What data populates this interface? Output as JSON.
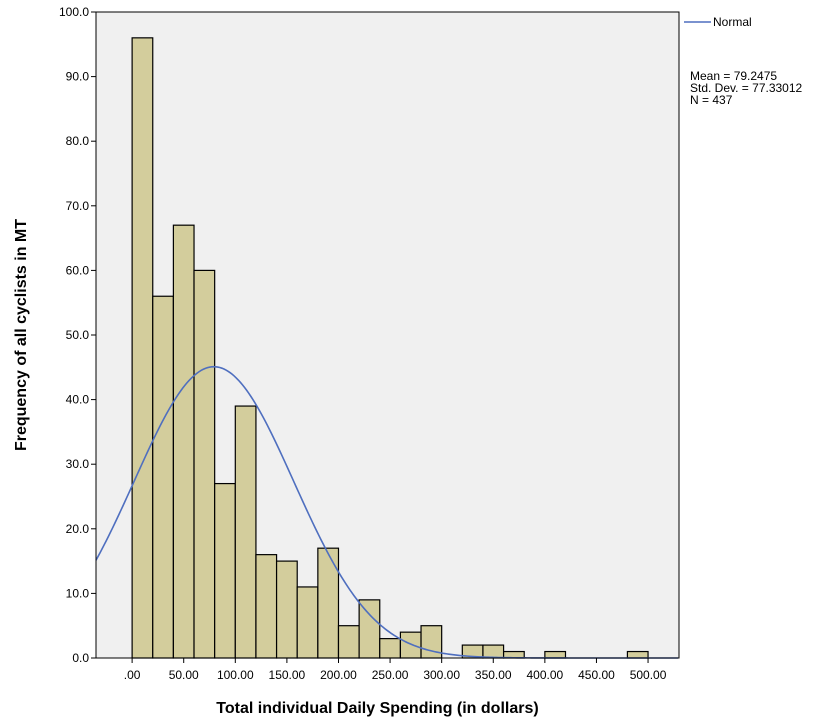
{
  "chart_data": {
    "type": "bar",
    "subtype": "histogram",
    "title": "",
    "xlabel": "Total individual Daily Spending (in dollars)",
    "ylabel": "Frequency of all cyclists in MT",
    "xlim": [
      -35,
      530
    ],
    "ylim": [
      0,
      100
    ],
    "bin_width": 20,
    "bin_start": 0,
    "x_ticks": [
      0,
      50,
      100,
      150,
      200,
      250,
      300,
      350,
      400,
      450,
      500
    ],
    "x_tick_labels": [
      ".00",
      "50.00",
      "100.00",
      "150.00",
      "200.00",
      "250.00",
      "300.00",
      "350.00",
      "400.00",
      "450.00",
      "500.00"
    ],
    "y_ticks": [
      0,
      10,
      20,
      30,
      40,
      50,
      60,
      70,
      80,
      90,
      100
    ],
    "y_tick_labels": [
      "0.0",
      "10.0",
      "20.0",
      "30.0",
      "40.0",
      "50.0",
      "60.0",
      "70.0",
      "80.0",
      "90.0",
      "100.0"
    ],
    "values": [
      96,
      56,
      67,
      60,
      27,
      39,
      16,
      15,
      11,
      17,
      5,
      9,
      3,
      4,
      5,
      0,
      2,
      2,
      1,
      0,
      1,
      0,
      0,
      0,
      1
    ],
    "bar_color": "#d3cd9c",
    "bar_edge_color": "#000000",
    "plot_background": "#f0f0f0",
    "grid": false,
    "normal_curve": {
      "name": "Normal",
      "color": "#4f6fbf",
      "mean": 79.2475,
      "std": 77.33012,
      "n": 437
    },
    "legend": {
      "position": "top-right",
      "entries": [
        "Normal"
      ]
    },
    "stats": {
      "mean_label": "Mean = 79.2475",
      "std_label": "Std. Dev. = 77.33012",
      "n_label": "N = 437"
    }
  }
}
